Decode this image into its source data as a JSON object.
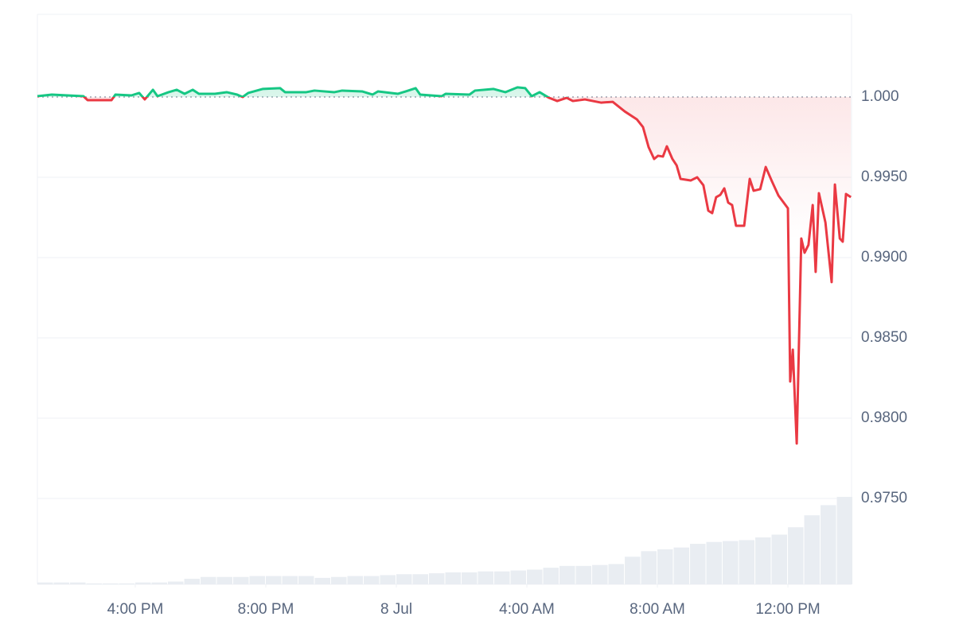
{
  "chart_data": {
    "type": "line",
    "x": [
      -11,
      -10.56,
      -9.59,
      -9.46,
      -8.73,
      -8.61,
      -8.12,
      -7.88,
      -7.71,
      -7.46,
      -7.32,
      -6.98,
      -6.73,
      -6.49,
      -6.24,
      -6.05,
      -5.56,
      -5.2,
      -4.88,
      -4.71,
      -4.54,
      -4.1,
      -3.56,
      -3.41,
      -2.76,
      -2.51,
      -1.9,
      -1.66,
      -1.05,
      -0.73,
      -0.56,
      0.05,
      0.29,
      0.59,
      0.73,
      1.39,
      1.51,
      2.24,
      2.41,
      2.98,
      3.34,
      3.71,
      3.95,
      4.15,
      4.39,
      4.68,
      4.93,
      5.22,
      5.41,
      5.78,
      6.27,
      6.63,
      7.0,
      7.37,
      7.56,
      7.73,
      7.9,
      8.02,
      8.17,
      8.29,
      8.46,
      8.59,
      8.71,
      9.02,
      9.22,
      9.41,
      9.56,
      9.68,
      9.8,
      9.93,
      10.05,
      10.17,
      10.29,
      10.41,
      10.66,
      10.83,
      10.95,
      11.15,
      11.32,
      11.51,
      11.71,
      12.0,
      12.07,
      12.15,
      12.27,
      12.41,
      12.51,
      12.63,
      12.76,
      12.85,
      12.95,
      13.15,
      13.34,
      13.44,
      13.59,
      13.68,
      13.78,
      13.93
    ],
    "values": [
      1.00005,
      1.00015,
      1.00005,
      0.9998,
      0.9998,
      1.00015,
      1.0001,
      1.00025,
      0.99985,
      1.00045,
      1.00005,
      1.0003,
      1.00045,
      1.0002,
      1.00045,
      1.0002,
      1.0002,
      1.0003,
      1.00015,
      1.0,
      1.00025,
      1.0005,
      1.00055,
      1.0003,
      1.0003,
      1.0004,
      1.0003,
      1.0004,
      1.00035,
      1.00015,
      1.00035,
      1.0002,
      1.00035,
      1.00055,
      1.00015,
      1.00005,
      1.0002,
      1.00015,
      1.0004,
      1.0005,
      1.0003,
      1.0006,
      1.00055,
      1.00005,
      1.0003,
      0.99995,
      0.99975,
      0.99995,
      0.99975,
      0.99985,
      0.99965,
      0.9997,
      0.9991,
      0.99861,
      0.99812,
      0.99688,
      0.99614,
      0.99634,
      0.99629,
      0.99693,
      0.99614,
      0.99574,
      0.9949,
      0.9948,
      0.995,
      0.9945,
      0.99292,
      0.99277,
      0.99376,
      0.99391,
      0.99431,
      0.99342,
      0.99327,
      0.99198,
      0.99198,
      0.9949,
      0.99416,
      0.99426,
      0.99564,
      0.99475,
      0.99386,
      0.99307,
      0.98228,
      0.98426,
      0.97842,
      0.99119,
      0.9903,
      0.99079,
      0.99327,
      0.98911,
      0.99401,
      0.99218,
      0.98847,
      0.99455,
      0.99119,
      0.99099,
      0.99396,
      0.99376
    ],
    "baseline": 1,
    "up_color": "#16c784",
    "down_color": "#ea3943",
    "volume": {
      "color": "#e9edf2",
      "x": [
        -11,
        -10.5,
        -10,
        -9.5,
        -9,
        -8.5,
        -8,
        -7.5,
        -7,
        -6.5,
        -6,
        -5.5,
        -5,
        -4.5,
        -4,
        -3.5,
        -3,
        -2.5,
        -2,
        -1.5,
        -1,
        -0.5,
        0,
        0.5,
        1,
        1.5,
        2,
        2.5,
        3,
        3.5,
        4,
        4.5,
        5,
        5.5,
        6,
        6.5,
        7,
        7.5,
        8,
        8.5,
        9,
        9.5,
        10,
        10.5,
        11,
        11.5,
        12,
        12.5,
        13,
        13.5
      ],
      "values": [
        2,
        2,
        2,
        1,
        1,
        1,
        2,
        2,
        3,
        6,
        8,
        8,
        8,
        9,
        9,
        9,
        9,
        7,
        8,
        9,
        9,
        10,
        11,
        11,
        12,
        13,
        13,
        14,
        14,
        15,
        16,
        18,
        20,
        20,
        21,
        22,
        30,
        36,
        38,
        40,
        44,
        46,
        47,
        48,
        51,
        54,
        62,
        75,
        86,
        95
      ]
    },
    "xlim": [
      -11,
      13.95
    ],
    "xticks": [
      {
        "value": -8,
        "label": "4:00 PM"
      },
      {
        "value": -4,
        "label": "8:00 PM"
      },
      {
        "value": 0,
        "label": "8 Jul"
      },
      {
        "value": 4,
        "label": "4:00 AM"
      },
      {
        "value": 8,
        "label": "8:00 AM"
      },
      {
        "value": 12,
        "label": "12:00 PM"
      }
    ],
    "ylim": [
      0.96965,
      1.00515
    ],
    "yticks": [
      {
        "value": 0.975,
        "label": "0.9750"
      },
      {
        "value": 0.98,
        "label": "0.9800"
      },
      {
        "value": 0.985,
        "label": "0.9850"
      },
      {
        "value": 0.99,
        "label": "0.9900"
      },
      {
        "value": 0.995,
        "label": "0.9950"
      },
      {
        "value": 1,
        "label": "1.000"
      }
    ],
    "grid": true
  }
}
